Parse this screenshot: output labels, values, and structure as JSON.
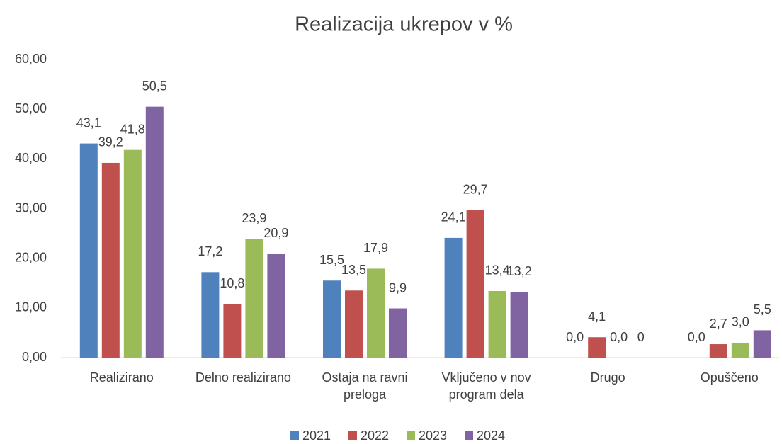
{
  "chart_data": {
    "type": "bar",
    "title": "Realizacija ukrepov v %",
    "categories": [
      "Realizirano",
      "Delno realizirano",
      "Ostaja na ravni preloga",
      "Vključeno v nov program dela",
      "Drugo",
      "Opuščeno"
    ],
    "series": [
      {
        "name": "2021",
        "color": "#4f81bd",
        "values": [
          43.1,
          17.2,
          15.5,
          24.1,
          0.0,
          0.0
        ],
        "value_labels": [
          "43,1",
          "17,2",
          "15,5",
          "24,1",
          "0,0",
          "0,0"
        ]
      },
      {
        "name": "2022",
        "color": "#c0504d",
        "values": [
          39.2,
          10.8,
          13.5,
          29.7,
          4.1,
          2.7
        ],
        "value_labels": [
          "39,2",
          "10,8",
          "13,5",
          "29,7",
          "4,1",
          "2,7"
        ]
      },
      {
        "name": "2023",
        "color": "#9bbb59",
        "values": [
          41.8,
          23.9,
          17.9,
          13.4,
          0.0,
          3.0
        ],
        "value_labels": [
          "41,8",
          "23,9",
          "17,9",
          "13,4",
          "0,0",
          "3,0"
        ]
      },
      {
        "name": "2024",
        "color": "#8064a2",
        "values": [
          50.5,
          20.9,
          9.9,
          13.2,
          0,
          5.5
        ],
        "value_labels": [
          "50,5",
          "20,9",
          "9,9",
          "13,2",
          "0",
          "5,5"
        ]
      }
    ],
    "ylim": [
      0,
      60
    ],
    "yticks": [
      {
        "value": 0,
        "label": "0,00"
      },
      {
        "value": 10,
        "label": "10,00"
      },
      {
        "value": 20,
        "label": "20,00"
      },
      {
        "value": 30,
        "label": "30,00"
      },
      {
        "value": 40,
        "label": "40,00"
      },
      {
        "value": 50,
        "label": "50,00"
      },
      {
        "value": 60,
        "label": "60,00"
      }
    ],
    "grid": false,
    "legend": "bottom"
  }
}
